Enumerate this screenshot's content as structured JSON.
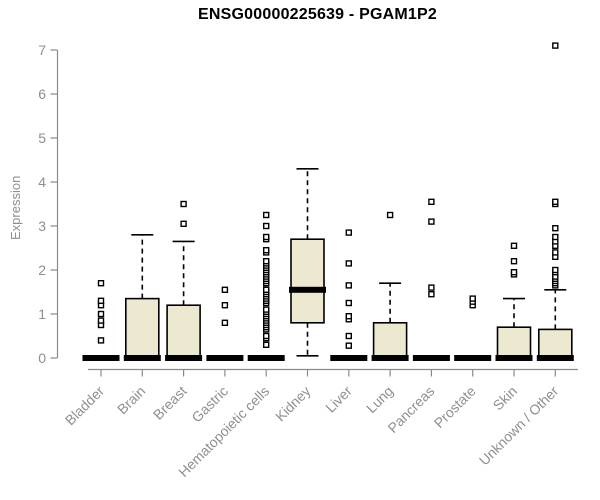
{
  "chart_data": {
    "type": "boxplot",
    "title": "ENSG00000225639 - PGAM1P2",
    "ylabel": "Expression",
    "ylim": [
      0,
      7
    ],
    "yticks": [
      0,
      1,
      2,
      3,
      4,
      5,
      6,
      7
    ],
    "grid": false,
    "legend": "none",
    "colors": {
      "axis": "#8a8a8a",
      "tick_text": "#8f8f8f",
      "title_text": "#000000",
      "box_fill": "#ede8d0",
      "box_stroke": "#000000",
      "background": "#ffffff"
    },
    "categories": [
      "Bladder",
      "Brain",
      "Breast",
      "Gastric",
      "Hematopoietic cells",
      "Kidney",
      "Liver",
      "Lung",
      "Pancreas",
      "Prostate",
      "Skin",
      "Unknown / Other"
    ],
    "boxes": [
      {
        "category": "Bladder",
        "q1": 0,
        "median": 0,
        "q3": 0,
        "whisker_low": 0,
        "whisker_high": 0,
        "outliers": [
          0.4,
          0.75,
          0.85,
          1.0,
          1.2,
          1.3,
          1.7
        ]
      },
      {
        "category": "Brain",
        "q1": 0,
        "median": 0,
        "q3": 1.35,
        "whisker_low": 0,
        "whisker_high": 2.8,
        "outliers": []
      },
      {
        "category": "Breast",
        "q1": 0,
        "median": 0,
        "q3": 1.2,
        "whisker_low": 0,
        "whisker_high": 2.65,
        "outliers": [
          3.05,
          3.5
        ]
      },
      {
        "category": "Gastric",
        "q1": 0,
        "median": 0,
        "q3": 0,
        "whisker_low": 0,
        "whisker_high": 0,
        "outliers": [
          0.8,
          1.2,
          1.55
        ]
      },
      {
        "category": "Hematopoietic cells",
        "q1": 0,
        "median": 0,
        "q3": 0,
        "whisker_low": 0,
        "whisker_high": 0,
        "outliers": [
          0.3,
          0.45,
          0.5,
          0.65,
          0.7,
          0.75,
          0.8,
          0.85,
          0.9,
          0.95,
          1.0,
          1.05,
          1.1,
          1.25,
          1.3,
          1.35,
          1.4,
          1.45,
          1.5,
          1.55,
          1.7,
          1.75,
          1.8,
          1.85,
          1.9,
          1.95,
          2.0,
          2.05,
          2.1,
          2.15,
          2.2,
          2.4,
          2.45,
          2.7,
          2.75,
          3.0,
          3.25
        ]
      },
      {
        "category": "Kidney",
        "q1": 0.8,
        "median": 1.55,
        "q3": 2.7,
        "whisker_low": 0.05,
        "whisker_high": 4.3,
        "outliers": []
      },
      {
        "category": "Liver",
        "q1": 0,
        "median": 0,
        "q3": 0,
        "whisker_low": 0,
        "whisker_high": 0,
        "outliers": [
          0.28,
          0.5,
          0.88,
          0.95,
          1.25,
          1.65,
          2.15,
          2.85
        ]
      },
      {
        "category": "Lung",
        "q1": 0,
        "median": 0,
        "q3": 0.8,
        "whisker_low": 0,
        "whisker_high": 1.7,
        "outliers": [
          3.25
        ]
      },
      {
        "category": "Pancreas",
        "q1": 0,
        "median": 0,
        "q3": 0,
        "whisker_low": 0,
        "whisker_high": 0,
        "outliers": [
          1.45,
          1.6,
          3.1,
          3.55
        ]
      },
      {
        "category": "Prostate",
        "q1": 0,
        "median": 0,
        "q3": 0,
        "whisker_low": 0,
        "whisker_high": 0,
        "outliers": [
          1.2,
          1.28,
          1.35
        ]
      },
      {
        "category": "Skin",
        "q1": 0,
        "median": 0,
        "q3": 0.7,
        "whisker_low": 0,
        "whisker_high": 1.35,
        "outliers": [
          1.9,
          1.95,
          2.2,
          2.55
        ]
      },
      {
        "category": "Unknown / Other",
        "q1": 0,
        "median": 0,
        "q3": 0.65,
        "whisker_low": 0,
        "whisker_high": 1.55,
        "outliers": [
          1.65,
          1.7,
          1.75,
          1.8,
          1.85,
          1.95,
          2.0,
          2.3,
          2.4,
          2.55,
          2.65,
          2.75,
          2.95,
          3.5,
          3.55,
          7.1
        ]
      }
    ]
  }
}
